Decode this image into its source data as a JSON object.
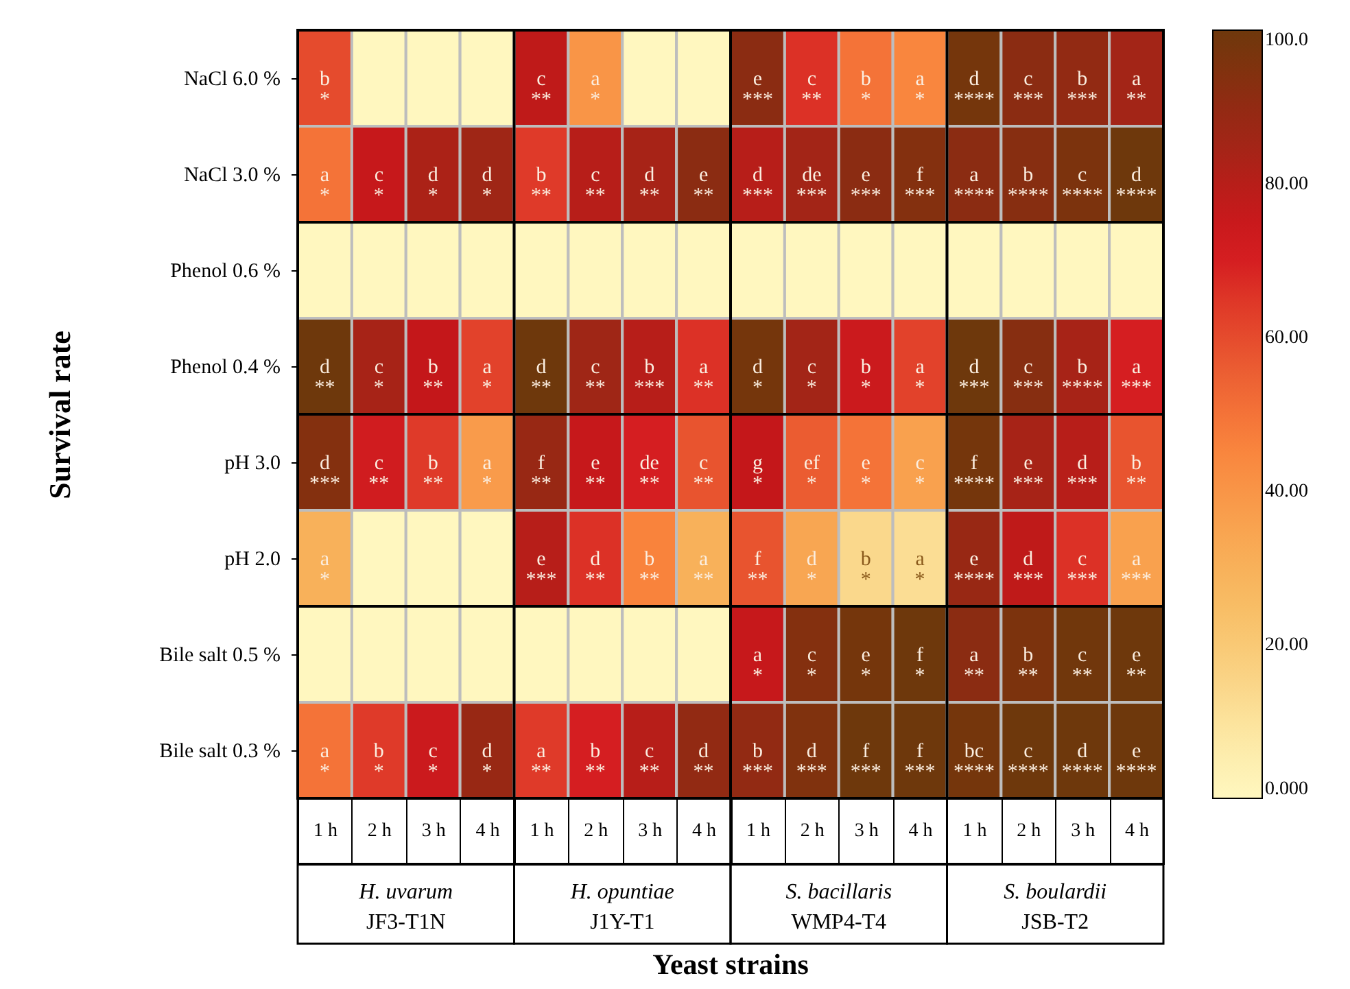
{
  "chart_data": {
    "type": "heatmap",
    "xlabel": "Yeast strains",
    "ylabel": "Survival rate",
    "categories": [
      "1 h",
      "2 h",
      "3 h",
      "4 h",
      "1 h",
      "2 h",
      "3 h",
      "4 h",
      "1 h",
      "2 h",
      "3 h",
      "4 h",
      "1 h",
      "2 h",
      "3 h",
      "4 h"
    ],
    "y_categories": [
      "NaCl 6.0 %",
      "NaCl 3.0 %",
      "Phenol 0.6 %",
      "Phenol 0.4 %",
      "pH 3.0",
      "pH 2.0",
      "Bile salt 0.5 %",
      "Bile salt 0.3 %"
    ],
    "annotations": [
      "H. uvarum",
      "JF3-T1N",
      "H. opuntiae",
      "J1Y-T1",
      "S. bacillaris",
      "WMP4-T4",
      "S. boulardii",
      "JSB-T2"
    ],
    "clim": [
      0,
      100
    ],
    "cticks": [
      {
        "value": 0,
        "label": "0.000"
      },
      {
        "value": 20,
        "label": "20.00"
      },
      {
        "value": 40,
        "label": "40.00"
      },
      {
        "value": 60,
        "label": "60.00"
      },
      {
        "value": 80,
        "label": "80.00"
      },
      {
        "value": 100,
        "label": "100.0"
      }
    ],
    "cells": [
      [
        60,
        0,
        0,
        0,
        78,
        40,
        0,
        0,
        92,
        66,
        50,
        45,
        98,
        92,
        90,
        85
      ],
      [
        50,
        76,
        83,
        86,
        64,
        80,
        84,
        92,
        80,
        85,
        92,
        94,
        92,
        93,
        96,
        100
      ],
      [
        0,
        0,
        0,
        0,
        0,
        0,
        0,
        0,
        0,
        0,
        0,
        0,
        0,
        0,
        0,
        0
      ],
      [
        100,
        84,
        77,
        62,
        100,
        86,
        80,
        66,
        98,
        85,
        74,
        62,
        100,
        93,
        84,
        70
      ],
      [
        94,
        72,
        64,
        38,
        88,
        76,
        70,
        58,
        77,
        56,
        50,
        36,
        98,
        84,
        80,
        58
      ],
      [
        30,
        0,
        0,
        0,
        80,
        66,
        46,
        30,
        58,
        34,
        14,
        12,
        88,
        78,
        66,
        36
      ],
      [
        0,
        0,
        0,
        0,
        0,
        0,
        0,
        0,
        76,
        94,
        98,
        100,
        92,
        96,
        99,
        100
      ],
      [
        50,
        64,
        74,
        88,
        64,
        70,
        80,
        90,
        90,
        95,
        100,
        100,
        98,
        100,
        100,
        100
      ]
    ],
    "cell_labels": [
      [
        "b\n*",
        null,
        null,
        null,
        "c\n**",
        "a\n*",
        null,
        null,
        "e\n***",
        "c\n**",
        "b\n*",
        "a\n*",
        "d\n****",
        "c\n***",
        "b\n***",
        "a\n**"
      ],
      [
        "a\n*",
        "c\n*",
        "d\n*",
        "d\n*",
        "b\n**",
        "c\n**",
        "d\n**",
        "e\n**",
        "d\n***",
        "de\n***",
        "e\n***",
        "f\n***",
        "a\n****",
        "b\n****",
        "c\n****",
        "d\n****"
      ],
      [
        null,
        null,
        null,
        null,
        null,
        null,
        null,
        null,
        null,
        null,
        null,
        null,
        null,
        null,
        null,
        null
      ],
      [
        "d\n**",
        "c\n*",
        "b\n**",
        "a\n*",
        "d\n**",
        "c\n**",
        "b\n***",
        "a\n**",
        "d\n*",
        "c\n*",
        "b\n*",
        "a\n*",
        "d\n***",
        "c\n***",
        "b\n****",
        "a\n***"
      ],
      [
        "d\n***",
        "c\n**",
        "b\n**",
        "a\n*",
        "f\n**",
        "e\n**",
        "de\n**",
        "c\n**",
        "g\n*",
        "ef\n*",
        "e\n*",
        "c\n*",
        "f\n****",
        "e\n***",
        "d\n***",
        "b\n**"
      ],
      [
        "a\n*",
        null,
        null,
        null,
        "e\n***",
        "d\n**",
        "b\n**",
        "a\n**",
        "f\n**",
        "d\n*",
        "b\n*",
        "a\n*",
        "e\n****",
        "d\n***",
        "c\n***",
        "a\n***"
      ],
      [
        null,
        null,
        null,
        null,
        null,
        null,
        null,
        null,
        "a\n*",
        "c\n*",
        "e\n*",
        "f\n*",
        "a\n**",
        "b\n**",
        "c\n**",
        "e\n**"
      ],
      [
        "a\n*",
        "b\n*",
        "c\n*",
        "d\n*",
        "a\n**",
        "b\n**",
        "c\n**",
        "d\n**",
        "b\n***",
        "d\n***",
        "f\n***",
        "f\n***",
        "bc\n****",
        "c\n****",
        "d\n****",
        "e\n****"
      ]
    ]
  }
}
